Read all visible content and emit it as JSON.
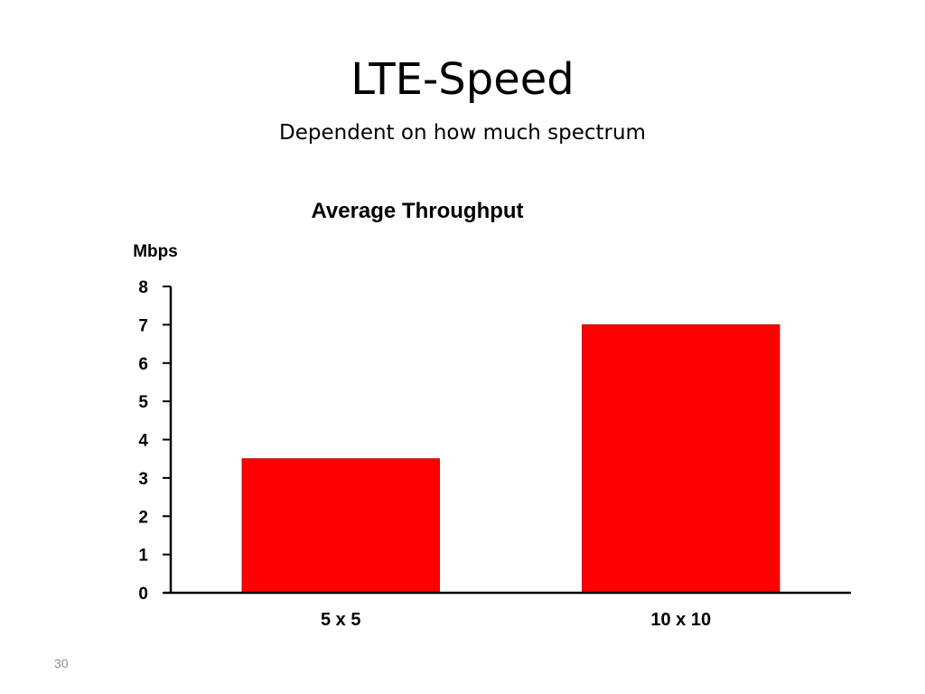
{
  "slide": {
    "title": "LTE-Speed",
    "subtitle": "Dependent on how much spectrum",
    "page_number": "30"
  },
  "chart_data": {
    "type": "bar",
    "title": "Average Throughput",
    "ylabel": "Mbps",
    "xlabel": "",
    "categories": [
      "5 x 5",
      "10 x 10"
    ],
    "values": [
      3.5,
      7
    ],
    "ylim": [
      0,
      8
    ],
    "yticks": [
      "0",
      "1",
      "2",
      "3",
      "4",
      "5",
      "6",
      "7",
      "8"
    ],
    "bar_color": "#ff0000",
    "grid": false,
    "legend": "none"
  }
}
